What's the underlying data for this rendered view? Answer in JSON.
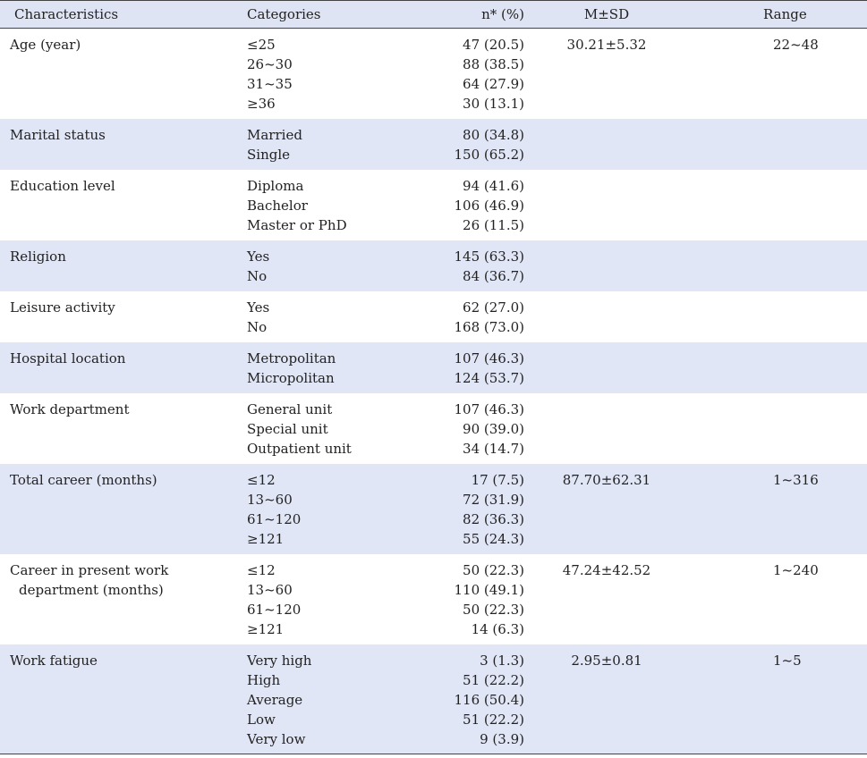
{
  "header": {
    "characteristics": "Characteristics",
    "categories": "Categories",
    "n_pct": "n* (%)",
    "msd": "M±SD",
    "range": "Range"
  },
  "rows": [
    {
      "char": [
        "Age (year)"
      ],
      "cats": [
        "≤25",
        "26~30",
        "31~35",
        "≥36"
      ],
      "n": [
        "47 (20.5)",
        "88 (38.5)",
        "64 (27.9)",
        "30 (13.1)"
      ],
      "msd": "30.21±5.32",
      "range": "22~48"
    },
    {
      "char": [
        "Marital status"
      ],
      "cats": [
        "Married",
        "Single"
      ],
      "n": [
        "80 (34.8)",
        "150 (65.2)"
      ],
      "msd": "",
      "range": ""
    },
    {
      "char": [
        "Education level"
      ],
      "cats": [
        "Diploma",
        "Bachelor",
        "Master or PhD"
      ],
      "n": [
        "94 (41.6)",
        "106 (46.9)",
        "26 (11.5)"
      ],
      "msd": "",
      "range": ""
    },
    {
      "char": [
        "Religion"
      ],
      "cats": [
        "Yes",
        "No"
      ],
      "n": [
        "145 (63.3)",
        "84 (36.7)"
      ],
      "msd": "",
      "range": ""
    },
    {
      "char": [
        "Leisure activity"
      ],
      "cats": [
        "Yes",
        "No"
      ],
      "n": [
        "62 (27.0)",
        "168 (73.0)"
      ],
      "msd": "",
      "range": ""
    },
    {
      "char": [
        "Hospital location"
      ],
      "cats": [
        "Metropolitan",
        "Micropolitan"
      ],
      "n": [
        "107 (46.3)",
        "124 (53.7)"
      ],
      "msd": "",
      "range": ""
    },
    {
      "char": [
        "Work department"
      ],
      "cats": [
        "General unit",
        "Special unit",
        "Outpatient unit"
      ],
      "n": [
        "107 (46.3)",
        "90 (39.0)",
        "34 (14.7)"
      ],
      "msd": "",
      "range": ""
    },
    {
      "char": [
        "Total career (months)"
      ],
      "cats": [
        "≤12",
        "13~60",
        "61~120",
        "≥121"
      ],
      "n": [
        "17 (7.5)",
        "72 (31.9)",
        "82 (36.3)",
        "55 (24.3)"
      ],
      "msd": "87.70±62.31",
      "range": "1~316"
    },
    {
      "char": [
        "Career in present work",
        "department (months)"
      ],
      "cats": [
        "≤12",
        "13~60",
        "61~120",
        "≥121"
      ],
      "n": [
        "50 (22.3)",
        "110 (49.1)",
        "50 (22.3)",
        "14 (6.3)"
      ],
      "msd": "47.24±42.52",
      "range": "1~240"
    },
    {
      "char": [
        "Work fatigue"
      ],
      "cats": [
        "Very high",
        "High",
        "Average",
        "Low",
        "Very low"
      ],
      "n": [
        "3 (1.3)",
        "51 (22.2)",
        "116 (50.4)",
        "51 (22.2)",
        "9 (3.9)"
      ],
      "msd": "2.95±0.81",
      "range": "1~5"
    }
  ]
}
